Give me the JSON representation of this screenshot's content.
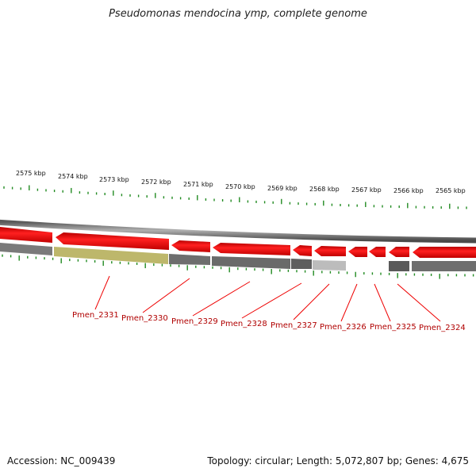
{
  "title": "Pseudomonas mendocina ymp, complete genome",
  "accession_text": "Accession: NC_009439",
  "topology_text": "Topology: circular; Length: 5,072,807 bp; Genes: 4,675",
  "scale_labels": [
    "2575 kbp",
    "2574 kbp",
    "2573 kbp",
    "2572 kbp",
    "2571 kbp",
    "2570 kbp",
    "2569 kbp",
    "2568 kbp",
    "2567 kbp",
    "2566 kbp",
    "2565 kbp"
  ],
  "gene_labels": [
    "Pmen_2331",
    "Pmen_2330",
    "Pmen_2329",
    "Pmen_2328",
    "Pmen_2327",
    "Pmen_2326",
    "Pmen_2325",
    "Pmen_2324"
  ],
  "colors": {
    "gene": "#ee0000",
    "backbone": "#8a8a8a",
    "highlight": "#bdb76b",
    "tick": "#228b22",
    "label": "#b00000"
  }
}
